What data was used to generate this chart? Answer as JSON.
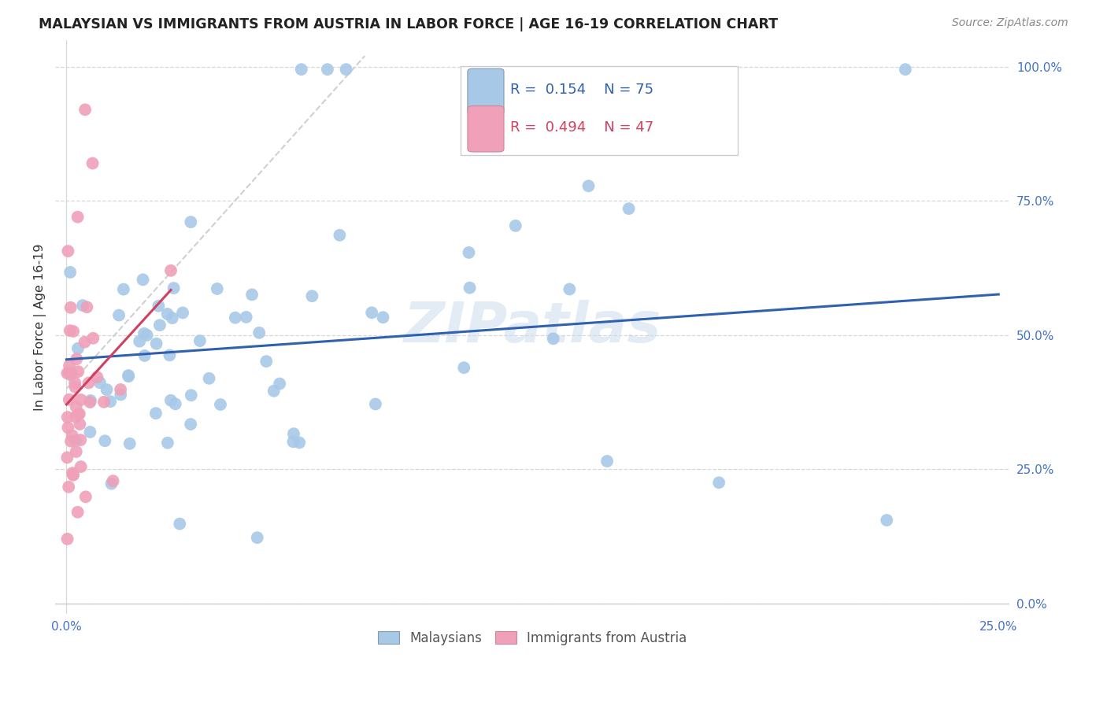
{
  "title": "MALAYSIAN VS IMMIGRANTS FROM AUSTRIA IN LABOR FORCE | AGE 16-19 CORRELATION CHART",
  "source": "Source: ZipAtlas.com",
  "ylabel": "In Labor Force | Age 16-19",
  "legend_blue_r": "0.154",
  "legend_blue_n": "75",
  "legend_pink_r": "0.494",
  "legend_pink_n": "47",
  "blue_color": "#a8c8e8",
  "pink_color": "#f0a0b8",
  "blue_line_color": "#3060b0",
  "pink_line_color": "#d04060",
  "gray_line_color": "#cccccc",
  "watermark": "ZIPatlas",
  "legend_label_blue": "Malaysians",
  "legend_label_pink": "Immigrants from Austria",
  "xlim": [
    0.0,
    0.25
  ],
  "ylim": [
    0.0,
    1.0
  ],
  "ytick_positions": [
    0.0,
    0.25,
    0.5,
    0.75,
    1.0
  ],
  "ytick_labels": [
    "0.0%",
    "25.0%",
    "50.0%",
    "75.0%",
    "100.0%"
  ],
  "xtick_positions": [
    0.0,
    0.05,
    0.1,
    0.15,
    0.2,
    0.25
  ],
  "xtick_labels": [
    "0.0%",
    "",
    "",
    "",
    "",
    "25.0%"
  ],
  "tick_color": "#4472c4",
  "axis_color": "#4472c4"
}
